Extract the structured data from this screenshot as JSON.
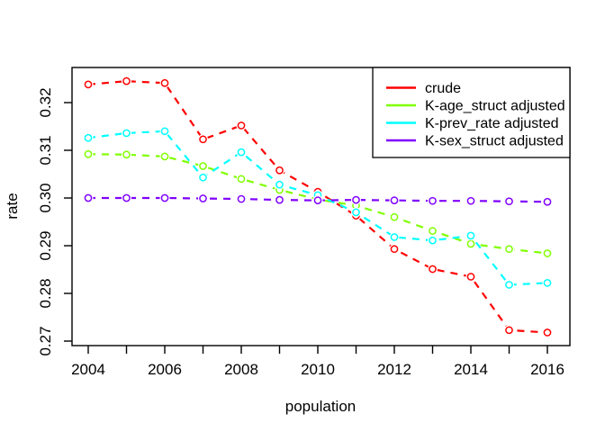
{
  "chart_data": {
    "type": "line",
    "title": "",
    "xlabel": "population",
    "ylabel": "rate",
    "x": [
      2004,
      2005,
      2006,
      2007,
      2008,
      2009,
      2010,
      2011,
      2012,
      2013,
      2014,
      2015,
      2016
    ],
    "series": [
      {
        "name": "crude",
        "color": "#FF0000",
        "values": [
          0.3238,
          0.3245,
          0.3241,
          0.3123,
          0.3152,
          0.3058,
          0.3013,
          0.2963,
          0.2893,
          0.2851,
          0.2835,
          0.2723,
          0.2718
        ]
      },
      {
        "name": "K-age_struct adjusted",
        "color": "#80FF00",
        "values": [
          0.3092,
          0.3091,
          0.3087,
          0.3067,
          0.304,
          0.3017,
          0.2997,
          0.2984,
          0.296,
          0.2931,
          0.2904,
          0.2893,
          0.2884
        ]
      },
      {
        "name": "K-prev_rate adjusted",
        "color": "#00FFFF",
        "values": [
          0.3126,
          0.3136,
          0.314,
          0.3043,
          0.3096,
          0.3028,
          0.3006,
          0.297,
          0.2918,
          0.2911,
          0.2921,
          0.2818,
          0.2822
        ]
      },
      {
        "name": "K-sex_struct adjusted",
        "color": "#8000FF",
        "values": [
          0.3,
          0.3,
          0.3,
          0.2999,
          0.2998,
          0.2996,
          0.2995,
          0.2996,
          0.2995,
          0.2994,
          0.2994,
          0.2993,
          0.2992
        ]
      }
    ],
    "xticks": {
      "positions": [
        2004,
        2005,
        2006,
        2007,
        2008,
        2009,
        2010,
        2011,
        2012,
        2013,
        2014,
        2015,
        2016
      ],
      "labels": [
        "2004",
        "",
        "2006",
        "",
        "2008",
        "",
        "2010",
        "",
        "2012",
        "",
        "2014",
        "",
        "2016"
      ]
    },
    "yticks": [
      {
        "value": 0.27,
        "label": "0.27"
      },
      {
        "value": 0.28,
        "label": "0.28"
      },
      {
        "value": 0.29,
        "label": "0.29"
      },
      {
        "value": 0.3,
        "label": "0.30"
      },
      {
        "value": 0.31,
        "label": "0.31"
      },
      {
        "value": 0.32,
        "label": "0.32"
      }
    ],
    "xlim": [
      2004,
      2016
    ],
    "ylim": [
      0.269,
      0.326
    ],
    "grid": false,
    "line_style": "dashed",
    "marker": "open-circle",
    "legend_position": "topright",
    "axis_color": "#000000",
    "background": "#FFFFFF"
  }
}
